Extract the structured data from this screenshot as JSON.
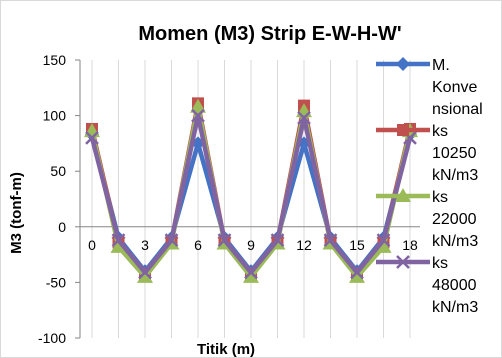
{
  "chart_data": {
    "type": "line",
    "title": "Momen (M3) Strip E-W-H-W'",
    "xlabel": "Titik (m)",
    "ylabel": "M3 (tonf-m)",
    "ylim": [
      -100,
      150
    ],
    "yticks": [
      150,
      100,
      50,
      0,
      -50,
      -100
    ],
    "x_tick_labels": [
      "0",
      "3",
      "6",
      "9",
      "12",
      "15",
      "18"
    ],
    "x": [
      0,
      1.5,
      3,
      4.5,
      6,
      7.5,
      9,
      10.5,
      12,
      13.5,
      15,
      16.5,
      18
    ],
    "grid": "vertical",
    "legend": "right",
    "series": [
      {
        "name": "M. Konvensional",
        "legend_lines": [
          "M.",
          "Konve",
          "nsional"
        ],
        "color": "#4472C4",
        "marker": "diamond",
        "values": [
          83,
          -10,
          -40,
          -10,
          75,
          -10,
          -40,
          -10,
          75,
          -10,
          -40,
          -10,
          83
        ]
      },
      {
        "name": "ks 10250 kN/m3",
        "legend_lines": [
          "ks",
          "10250",
          "kN/m3"
        ],
        "color": "#C0504D",
        "marker": "square",
        "values": [
          88,
          -14,
          -42,
          -13,
          111,
          -13,
          -42,
          -13,
          109,
          -13,
          -42,
          -14,
          88
        ]
      },
      {
        "name": "ks 22000 kN/m3",
        "legend_lines": [
          "ks",
          "22000",
          "kN/m3"
        ],
        "color": "#9BBB59",
        "marker": "triangle",
        "values": [
          86,
          -18,
          -45,
          -15,
          108,
          -15,
          -45,
          -15,
          104,
          -15,
          -45,
          -18,
          86
        ]
      },
      {
        "name": "ks 48000 kN/m3",
        "legend_lines": [
          "ks",
          "48000",
          "kN/m3"
        ],
        "color": "#8064A2",
        "marker": "x",
        "values": [
          80,
          -12,
          -41,
          -12,
          100,
          -12,
          -41,
          -12,
          98,
          -12,
          -41,
          -12,
          80
        ]
      }
    ]
  }
}
